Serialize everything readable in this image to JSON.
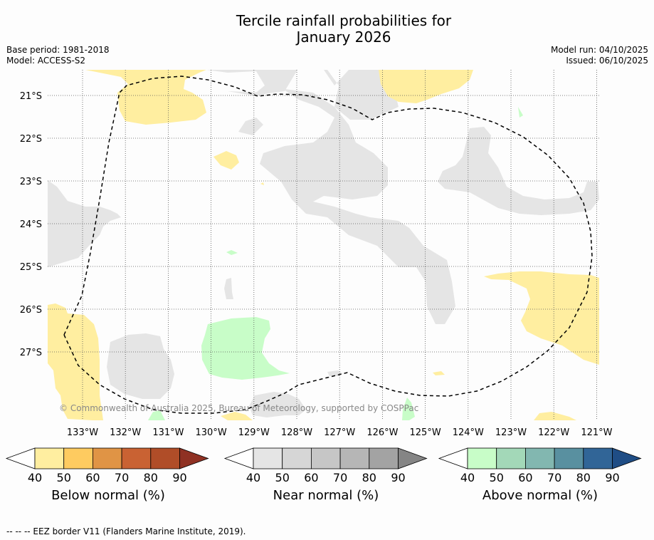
{
  "title_line1": "Tercile rainfall probabilities for",
  "title_line2": "January 2026",
  "base_period": "Base period: 1981-2018",
  "model": "Model: ACCESS-S2",
  "model_run": "Model run: 04/10/2025",
  "issued": "Issued: 06/10/2025",
  "lat_labels": [
    "21°S",
    "22°S",
    "23°S",
    "24°S",
    "25°S",
    "26°S",
    "27°S"
  ],
  "lon_labels": [
    "133°W",
    "132°W",
    "131°W",
    "130°W",
    "129°W",
    "128°W",
    "127°W",
    "126°W",
    "125°W",
    "124°W",
    "123°W",
    "122°W",
    "121°W"
  ],
  "copyright": "© Commonwealth of Australia 2025, Bureau of Meteorology, supported by COSPPac",
  "colorbars": [
    {
      "name": "below",
      "label": "Below normal (%)",
      "colors": [
        "#ffeea0",
        "#fecb60",
        "#e09445",
        "#c96233",
        "#b04d28",
        "#8f3123"
      ],
      "ticks": [
        "40",
        "50",
        "60",
        "70",
        "80",
        "90"
      ]
    },
    {
      "name": "near",
      "label": "Near normal (%)",
      "colors": [
        "#e5e5e5",
        "#d6d6d6",
        "#c6c6c6",
        "#b6b6b6",
        "#a3a3a3",
        "#858585"
      ],
      "ticks": [
        "40",
        "50",
        "60",
        "70",
        "80",
        "90"
      ]
    },
    {
      "name": "above",
      "label": "Above normal (%)",
      "colors": [
        "#c8fdc8",
        "#a3d8b8",
        "#82b7b0",
        "#5990a0",
        "#316597",
        "#1f4d85"
      ],
      "ticks": [
        "40",
        "50",
        "60",
        "70",
        "80",
        "90"
      ]
    }
  ],
  "footer": "--  --  -- EEZ border V11 (Flanders Marine Institute, 2019)."
}
